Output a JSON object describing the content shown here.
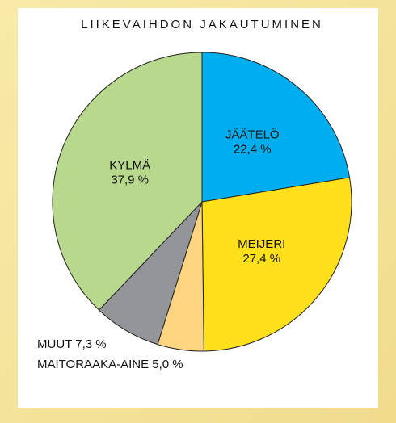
{
  "chart_data": {
    "type": "pie",
    "title": "LIIKEVAIHDON JAKAUTUMINEN",
    "categories": [
      "JÄÄTELÖ",
      "MEIJERI",
      "MAITORAAKA-AINE",
      "MUUT",
      "KYLMÄ"
    ],
    "values": [
      22.4,
      27.4,
      5.0,
      7.3,
      37.9
    ],
    "value_labels": [
      "22,4 %",
      "27,4 %",
      "5,0 %",
      "7,3 %",
      "37,9 %"
    ],
    "colors": [
      "#00aeef",
      "#ffe01b",
      "#fdd47f",
      "#939598",
      "#b8d98d"
    ]
  }
}
